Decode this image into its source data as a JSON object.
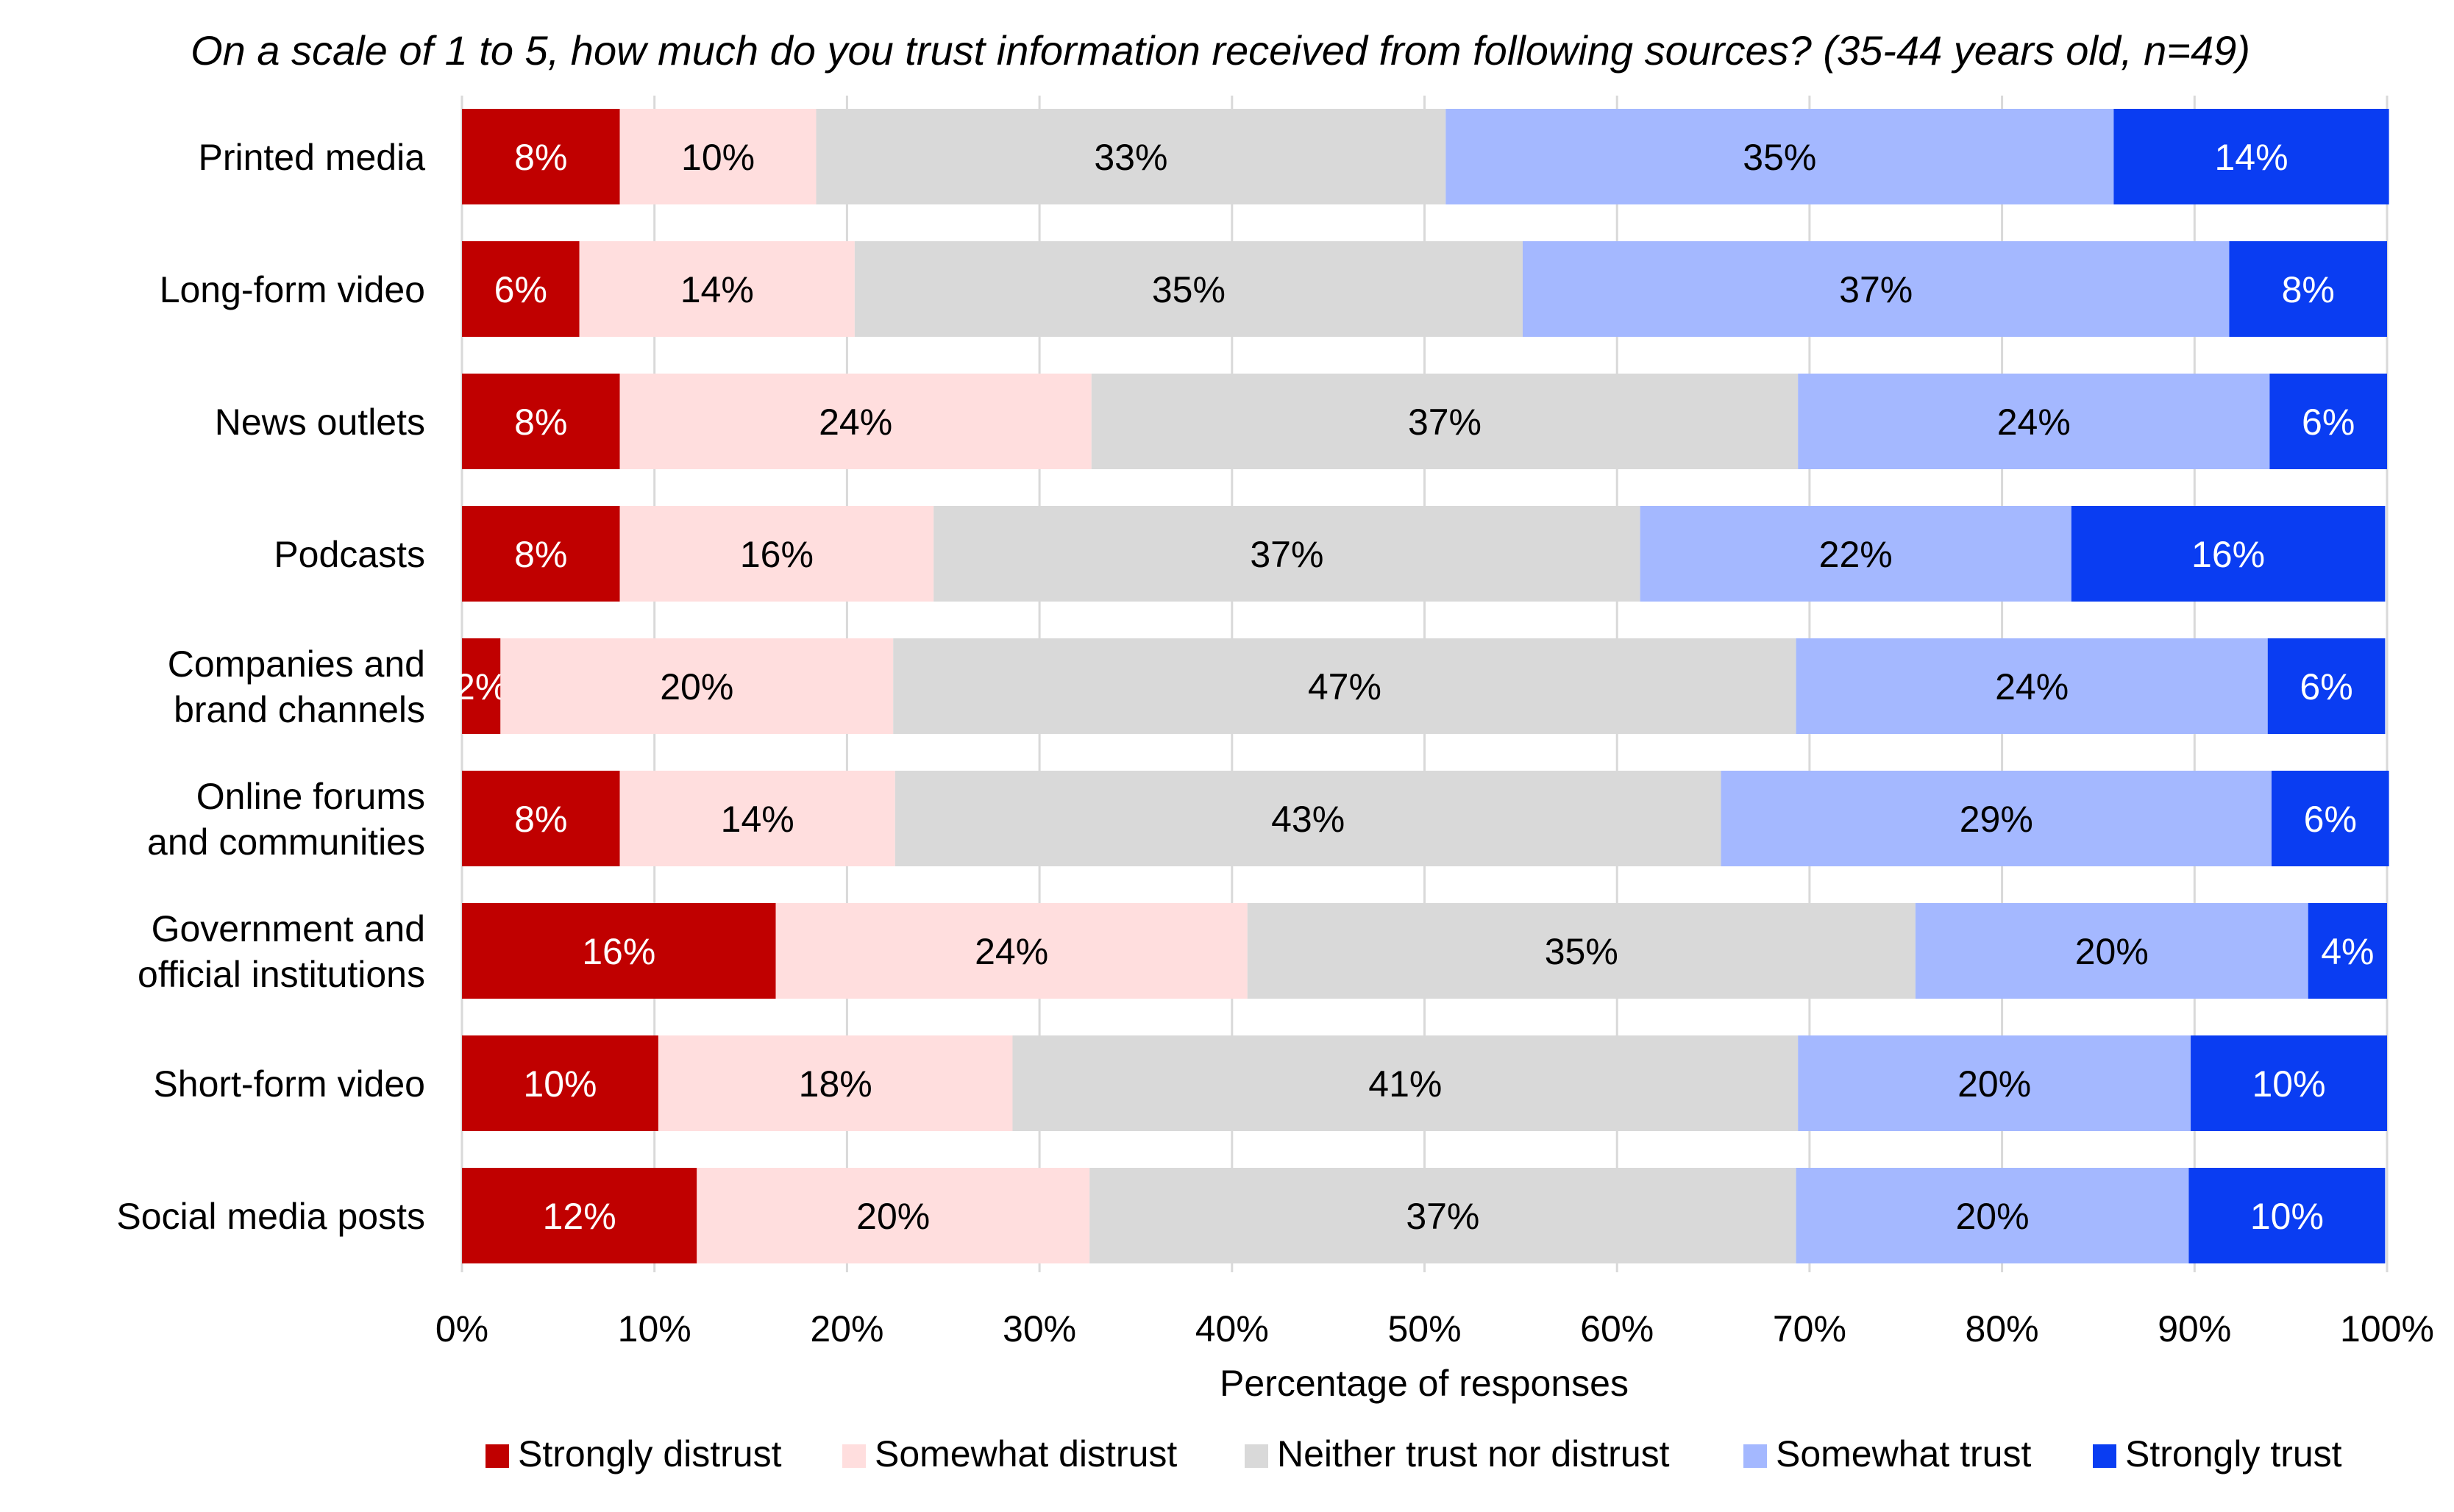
{
  "chart_data": {
    "type": "bar",
    "orientation": "horizontal",
    "stacked": true,
    "title": "On a scale of 1 to 5, how much do you trust information received from following sources? (35-44 years old, n=49)",
    "xlabel": "Percentage of responses",
    "ylabel": "",
    "xlim": [
      0,
      100
    ],
    "x_ticks": [
      "0%",
      "10%",
      "20%",
      "30%",
      "40%",
      "50%",
      "60%",
      "70%",
      "80%",
      "90%",
      "100%"
    ],
    "grid": true,
    "legend_position": "bottom",
    "categories": [
      [
        "Printed media"
      ],
      [
        "Long-form video"
      ],
      [
        "News outlets"
      ],
      [
        "Podcasts"
      ],
      [
        "Companies and",
        "brand channels"
      ],
      [
        "Online forums",
        "and communities"
      ],
      [
        "Government and",
        "official institutions"
      ],
      [
        "Short-form video"
      ],
      [
        "Social media posts"
      ]
    ],
    "series": [
      {
        "name": "Strongly distrust",
        "color": "#c00000",
        "label_color": "#ffffff",
        "values": [
          8.2,
          6.1,
          8.2,
          8.2,
          2.0,
          8.2,
          16.3,
          10.2,
          12.2
        ],
        "labels": [
          "8%",
          "6%",
          "8%",
          "8%",
          "2%",
          "8%",
          "16%",
          "10%",
          "12%"
        ]
      },
      {
        "name": "Somewhat distrust",
        "color": "#ffdede",
        "label_color": "#000000",
        "values": [
          10.2,
          14.3,
          24.5,
          16.3,
          20.4,
          14.3,
          24.5,
          18.4,
          20.4
        ],
        "labels": [
          "10%",
          "14%",
          "24%",
          "16%",
          "20%",
          "14%",
          "24%",
          "18%",
          "20%"
        ]
      },
      {
        "name": "Neither trust nor distrust",
        "color": "#d9d9d9",
        "label_color": "#000000",
        "values": [
          32.7,
          34.7,
          36.7,
          36.7,
          46.9,
          42.9,
          34.7,
          40.8,
          36.7
        ],
        "labels": [
          "33%",
          "35%",
          "37%",
          "37%",
          "47%",
          "43%",
          "35%",
          "41%",
          "37%"
        ]
      },
      {
        "name": "Somewhat trust",
        "color": "#a4b8ff",
        "label_color": "#000000",
        "values": [
          34.7,
          36.7,
          24.5,
          22.4,
          24.5,
          28.6,
          20.4,
          20.4,
          20.4
        ],
        "labels": [
          "35%",
          "37%",
          "24%",
          "22%",
          "24%",
          "29%",
          "20%",
          "20%",
          "20%"
        ]
      },
      {
        "name": "Strongly trust",
        "color": "#0a3df2",
        "label_color": "#ffffff",
        "values": [
          14.3,
          8.2,
          6.1,
          16.3,
          6.1,
          6.1,
          4.1,
          10.2,
          10.2
        ],
        "labels": [
          "14%",
          "8%",
          "6%",
          "16%",
          "6%",
          "6%",
          "4%",
          "10%",
          "10%"
        ]
      }
    ]
  }
}
